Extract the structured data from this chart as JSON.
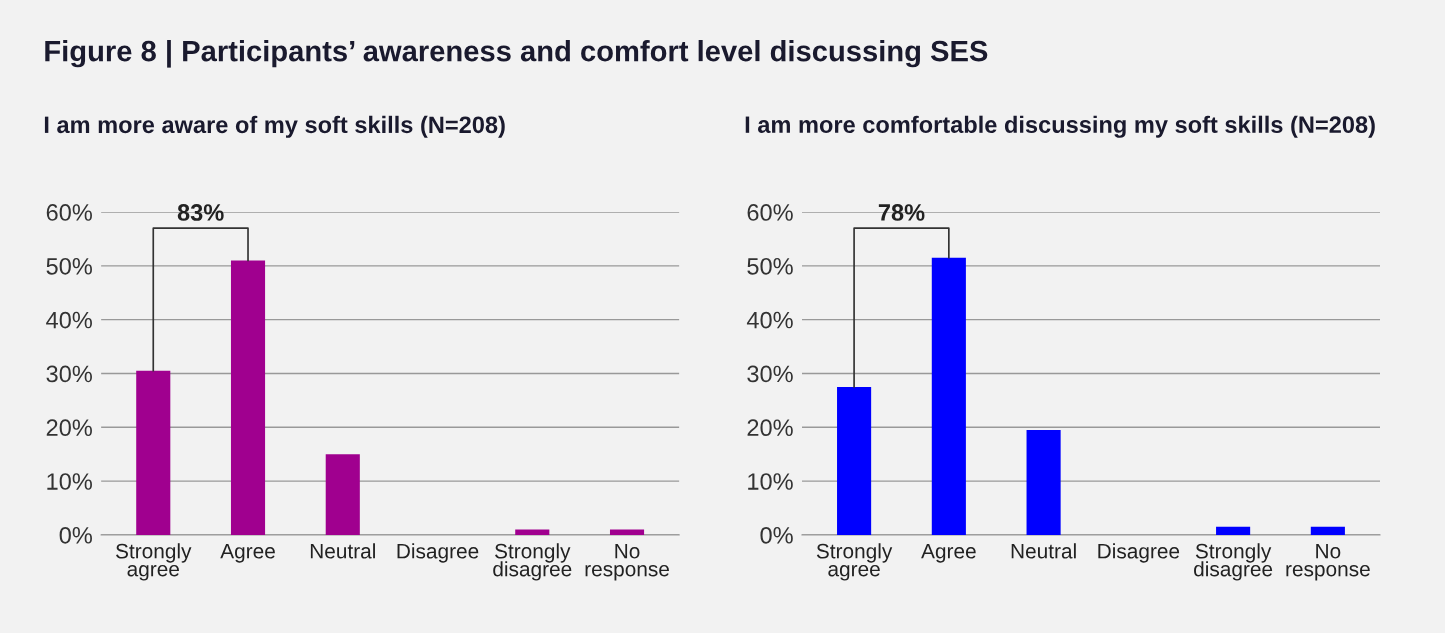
{
  "chart_data": [
    {
      "type": "bar",
      "title": "Figure 8 | Participants’ awareness and comfort level discussing SES",
      "subtitle": "I am more aware of my soft skills (N=208)",
      "categories": [
        "Strongly\nagree",
        "Agree",
        "Neutral",
        "Disagree",
        "Strongly\ndisagree",
        "No\nresponse"
      ],
      "values": [
        30.5,
        51,
        15,
        0,
        1,
        1
      ],
      "color": "#a0008f",
      "ylim": [
        0,
        60
      ],
      "yticks": [
        {
          "value": 0,
          "label": "0%"
        },
        {
          "value": 10,
          "label": "10%"
        },
        {
          "value": 20,
          "label": "20%"
        },
        {
          "value": 30,
          "label": "30%"
        },
        {
          "value": 40,
          "label": "40%"
        },
        {
          "value": 50,
          "label": "50%"
        },
        {
          "value": 60,
          "label": "60%"
        }
      ],
      "grid": "y",
      "annotations": [
        "83%"
      ]
    },
    {
      "type": "bar",
      "subtitle": "I am more comfortable discussing my soft skills (N=208)",
      "categories": [
        "Strongly\nagree",
        "Agree",
        "Neutral",
        "Disagree",
        "Strongly\ndisagree",
        "No\nresponse"
      ],
      "values": [
        27.5,
        51.5,
        19.5,
        0,
        1.5,
        1.5
      ],
      "color": "#0000ff",
      "ylim": [
        0,
        60
      ],
      "yticks": [
        {
          "value": 0,
          "label": "0%"
        },
        {
          "value": 10,
          "label": "10%"
        },
        {
          "value": 20,
          "label": "20%"
        },
        {
          "value": 30,
          "label": "30%"
        },
        {
          "value": 40,
          "label": "40%"
        },
        {
          "value": 50,
          "label": "50%"
        },
        {
          "value": 60,
          "label": "60%"
        }
      ],
      "grid": "y",
      "annotations": [
        "78%"
      ]
    }
  ]
}
